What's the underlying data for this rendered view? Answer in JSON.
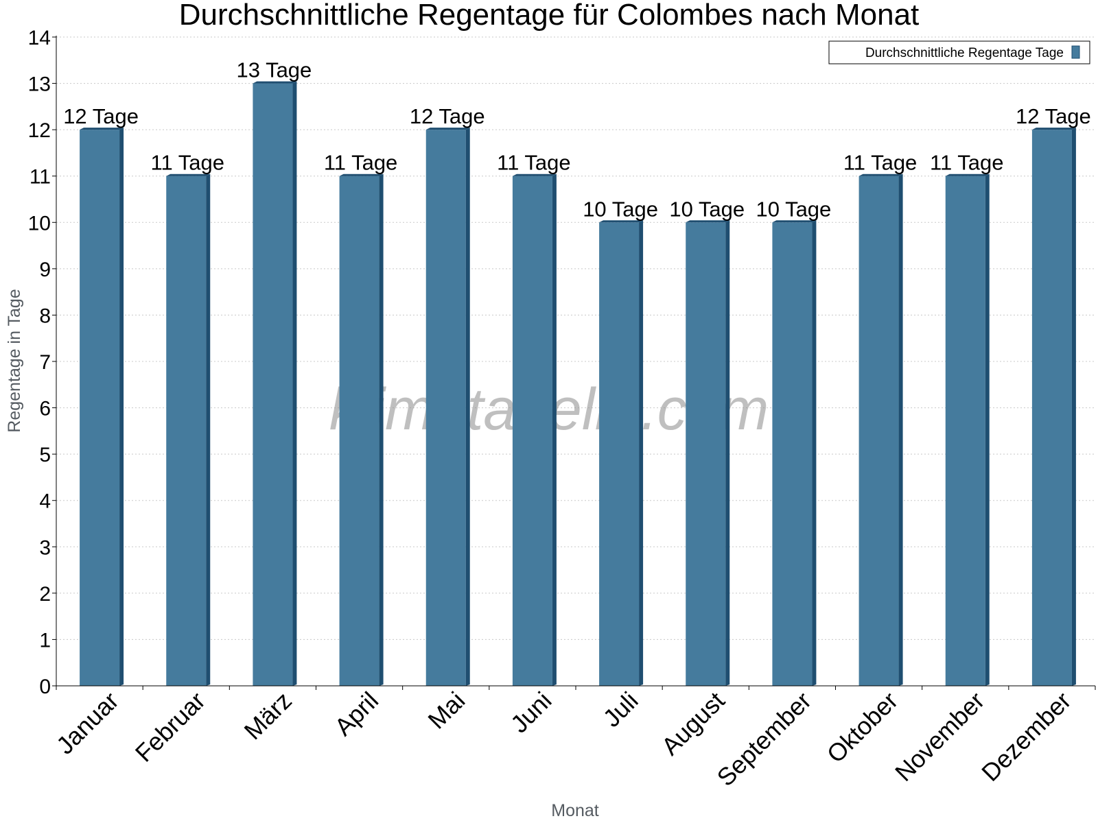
{
  "chart_data": {
    "type": "bar",
    "title": "Durchschnittliche Regentage für Colombes nach Monat",
    "xlabel": "Monat",
    "ylabel": "Regentage in Tage",
    "ylim": [
      0,
      14
    ],
    "yticks": [
      "0",
      "1",
      "2",
      "3",
      "4",
      "5",
      "6",
      "7",
      "8",
      "9",
      "10",
      "11",
      "12",
      "13",
      "14"
    ],
    "grid": true,
    "legend_position": "top-right",
    "categories": [
      "Januar",
      "Februar",
      "März",
      "April",
      "Mai",
      "Juni",
      "Juli",
      "August",
      "September",
      "Oktober",
      "November",
      "Dezember"
    ],
    "series": [
      {
        "name": "Durchschnittliche Regentage Tage",
        "color": "#457b9d",
        "values": [
          12,
          11,
          13,
          11,
          12,
          11,
          10,
          10,
          10,
          11,
          11,
          12
        ],
        "labels": [
          "12 Tage",
          "11 Tage",
          "13 Tage",
          "11 Tage",
          "12 Tage",
          "11 Tage",
          "10 Tage",
          "10 Tage",
          "10 Tage",
          "11 Tage",
          "11 Tage",
          "12 Tage"
        ]
      }
    ],
    "watermark": "klimatabelle.com"
  }
}
